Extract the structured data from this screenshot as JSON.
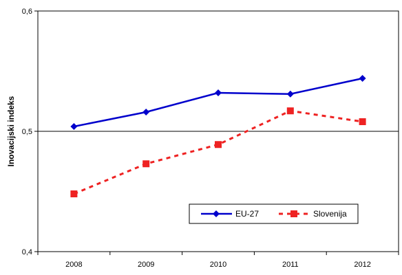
{
  "chart_data": {
    "type": "line",
    "title": "",
    "xlabel": "",
    "ylabel": "Inovacijski indeks",
    "x": [
      "2008",
      "2009",
      "2010",
      "2011",
      "2012"
    ],
    "ylim": [
      0.4,
      0.6
    ],
    "yticks": [
      "0,4",
      "0,5",
      "0,6"
    ],
    "grid": false,
    "reference_line_y": 0.5,
    "legend_position": "bottom-right",
    "series": [
      {
        "name": "EU-27",
        "values": [
          0.504,
          0.516,
          0.532,
          0.531,
          0.544
        ],
        "color": "#0000cc",
        "marker": "diamond",
        "line": "solid"
      },
      {
        "name": "Slovenija",
        "values": [
          0.448,
          0.473,
          0.489,
          0.517,
          0.508
        ],
        "color": "#ee2222",
        "marker": "square",
        "line": "dashed"
      }
    ]
  }
}
